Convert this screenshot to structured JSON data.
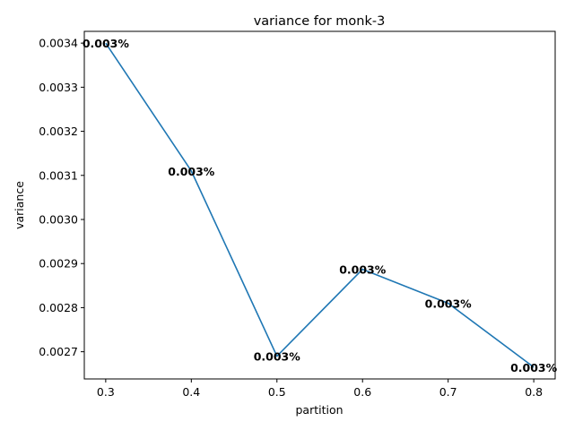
{
  "chart_data": {
    "type": "line",
    "title": "variance for monk-3",
    "xlabel": "partition",
    "ylabel": "variance",
    "x": [
      0.3,
      0.4,
      0.5,
      0.6,
      0.7,
      0.8
    ],
    "series": [
      {
        "values": [
          0.0034,
          0.00311,
          0.00269,
          0.002887,
          0.00281,
          0.002665
        ],
        "labels": [
          "0.003%",
          "0.003%",
          "0.003%",
          "0.003%",
          "0.003%",
          "0.003%"
        ],
        "color": "#1f77b4"
      }
    ],
    "xticks": [
      0.3,
      0.4,
      0.5,
      0.6,
      0.7,
      0.8
    ],
    "xtick_labels": [
      "0.3",
      "0.4",
      "0.5",
      "0.6",
      "0.7",
      "0.8"
    ],
    "yticks": [
      0.0027,
      0.0028,
      0.0029,
      0.003,
      0.0031,
      0.0032,
      0.0033,
      0.0034
    ],
    "ytick_labels": [
      "0.0027",
      "0.0028",
      "0.0029",
      "0.0030",
      "0.0031",
      "0.0032",
      "0.0033",
      "0.0034"
    ],
    "xlim": [
      0.275,
      0.825
    ],
    "ylim": [
      0.0026383,
      0.0034267
    ],
    "grid": false,
    "legend": "none"
  }
}
